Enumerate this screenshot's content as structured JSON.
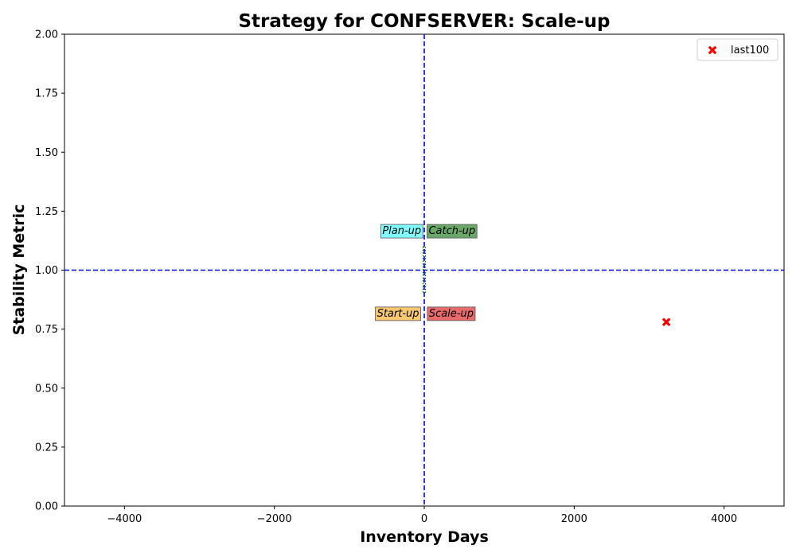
{
  "chart_data": {
    "type": "scatter",
    "title": "Strategy for CONFSERVER: Scale-up",
    "xlabel": "Inventory Days",
    "ylabel": "Stability Metric",
    "xlim": [
      -4800,
      4800
    ],
    "ylim": [
      0,
      2
    ],
    "xticks": [
      -4000,
      -2000,
      0,
      2000,
      4000
    ],
    "xtick_labels": [
      "−4000",
      "−2000",
      "0",
      "2000",
      "4000"
    ],
    "yticks": [
      0,
      0.25,
      0.5,
      0.75,
      1.0,
      1.25,
      1.5,
      1.75,
      2.0
    ],
    "ytick_labels": [
      "0.00",
      "0.25",
      "0.50",
      "0.75",
      "1.00",
      "1.25",
      "1.50",
      "1.75",
      "2.00"
    ],
    "reference_lines": {
      "x": 0,
      "y": 1.0,
      "color": "#0000ff",
      "style": "dashed"
    },
    "series": [
      {
        "name": "last100",
        "color": "#ff0000",
        "marker": "x",
        "points": [
          {
            "x": 3230,
            "y": 0.78
          }
        ]
      }
    ],
    "quadrant_labels": [
      {
        "text": "Plan-up",
        "x": -300,
        "y": 1.17,
        "bg": "#7fffff"
      },
      {
        "text": "Catch-up",
        "x": 370,
        "y": 1.17,
        "bg": "#6aa86a"
      },
      {
        "text": "Start-up",
        "x": -350,
        "y": 0.82,
        "bg": "#f8c870"
      },
      {
        "text": "Scale-up",
        "x": 360,
        "y": 0.82,
        "bg": "#e86a6a"
      }
    ],
    "center_box": {
      "x": [
        -15,
        15
      ],
      "y": [
        0.9,
        1.1
      ],
      "color": "#006400",
      "style": "dotted"
    },
    "legend_position": "top-right",
    "grid": false
  }
}
